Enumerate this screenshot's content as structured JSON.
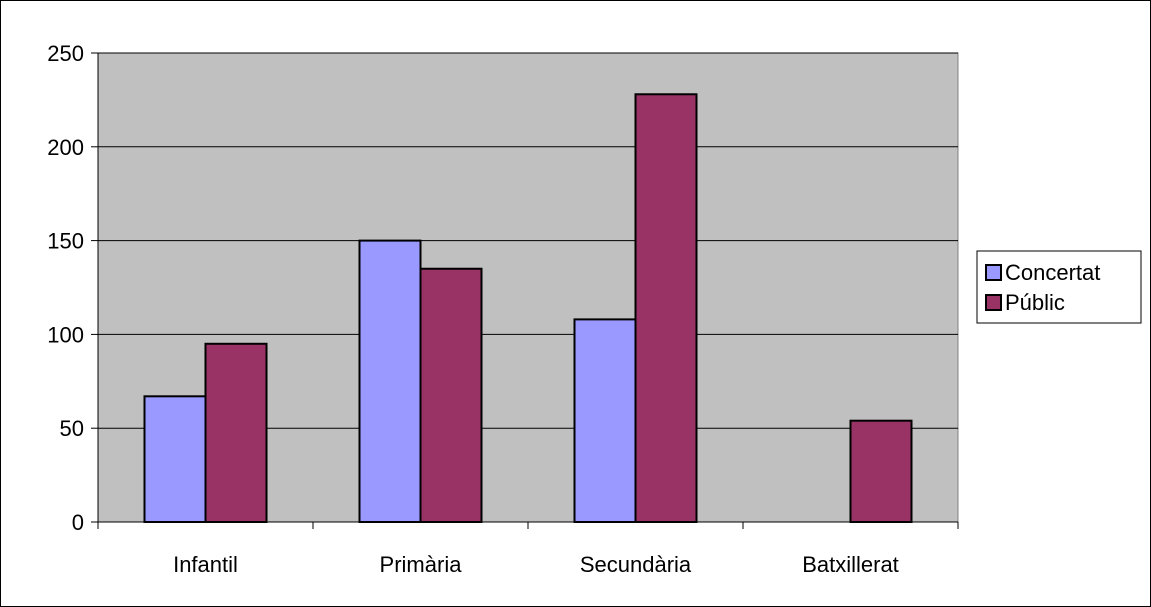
{
  "chart_data": {
    "type": "bar",
    "categories": [
      "Infantil",
      "Primària",
      "Secundària",
      "Batxillerat"
    ],
    "series": [
      {
        "name": "Concertat",
        "values": [
          67,
          150,
          108,
          0
        ],
        "color": "#9999FF"
      },
      {
        "name": "Públic",
        "values": [
          95,
          135,
          228,
          54
        ],
        "color": "#993366"
      }
    ],
    "ylim": [
      0,
      250
    ],
    "yticks": [
      0,
      50,
      100,
      150,
      200,
      250
    ],
    "grid": true,
    "plot_background": "#C0C0C0",
    "legend_position": "right"
  }
}
